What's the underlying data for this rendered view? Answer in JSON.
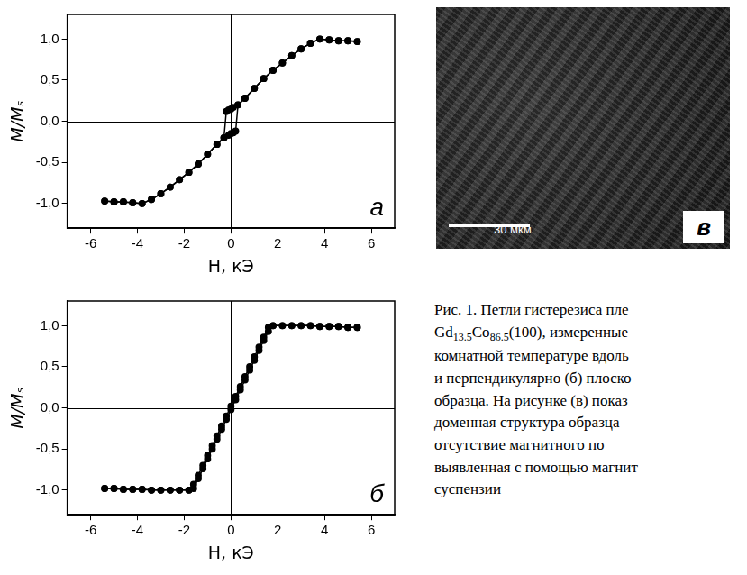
{
  "chart_data": [
    {
      "type": "scatter",
      "annotation": "а",
      "x_label": "H, кЭ",
      "y_label": "M/Mₛ",
      "xlim": [
        -7,
        7
      ],
      "ylim": [
        -1.3,
        1.3
      ],
      "xticks": [
        -6,
        -4,
        -2,
        0,
        2,
        4,
        6
      ],
      "yticks": [
        {
          "value": -1,
          "label": "-1,0"
        },
        {
          "value": -0.5,
          "label": "-0,5"
        },
        {
          "value": 0,
          "label": "0,0"
        },
        {
          "value": 0.5,
          "label": "0,5"
        },
        {
          "value": 1,
          "label": "1,0"
        }
      ],
      "grid": false,
      "marker": "circle",
      "line_style": "solid",
      "series": [
        {
          "color": "#000000",
          "x": [
            5.4,
            5.0,
            4.6,
            4.2,
            3.8,
            3.4,
            3.0,
            2.6,
            2.2,
            1.8,
            1.4,
            1.0,
            0.6,
            0.3,
            0.1,
            0.0,
            -0.1,
            -0.2,
            -0.3,
            -0.6,
            -1.0,
            -1.4,
            -1.8,
            -2.2,
            -2.6,
            -3.0,
            -3.4,
            -3.8,
            -4.2,
            -4.6,
            -5.0,
            -5.4
          ],
          "values": [
            0.97,
            0.98,
            0.98,
            0.99,
            1.0,
            0.95,
            0.88,
            0.8,
            0.71,
            0.62,
            0.52,
            0.4,
            0.28,
            0.2,
            0.17,
            0.15,
            0.14,
            0.12,
            -0.2,
            -0.28,
            -0.4,
            -0.52,
            -0.62,
            -0.71,
            -0.8,
            -0.88,
            -0.95,
            -1.0,
            -0.99,
            -0.98,
            -0.98,
            -0.97
          ]
        },
        {
          "color": "#000000",
          "x": [
            -5.4,
            -5.0,
            -4.6,
            -4.2,
            -3.8,
            -3.4,
            -3.0,
            -2.6,
            -2.2,
            -1.8,
            -1.4,
            -1.0,
            -0.6,
            -0.3,
            -0.1,
            0.0,
            0.1,
            0.2,
            0.3,
            0.6,
            1.0,
            1.4,
            1.8,
            2.2,
            2.6,
            3.0,
            3.4,
            3.8,
            4.2,
            4.6,
            5.0,
            5.4
          ],
          "values": [
            -0.97,
            -0.98,
            -0.98,
            -0.99,
            -1.0,
            -0.95,
            -0.88,
            -0.8,
            -0.71,
            -0.62,
            -0.52,
            -0.4,
            -0.28,
            -0.2,
            -0.17,
            -0.15,
            -0.14,
            -0.12,
            0.2,
            0.28,
            0.4,
            0.52,
            0.62,
            0.71,
            0.8,
            0.88,
            0.95,
            1.0,
            0.99,
            0.98,
            0.98,
            0.97
          ]
        }
      ]
    },
    {
      "type": "scatter",
      "annotation": "б",
      "x_label": "H, кЭ",
      "y_label": "M/Mₛ",
      "xlim": [
        -7,
        7
      ],
      "ylim": [
        -1.3,
        1.3
      ],
      "xticks": [
        -6,
        -4,
        -2,
        0,
        2,
        4,
        6
      ],
      "yticks": [
        {
          "value": -1,
          "label": "-1,0"
        },
        {
          "value": -0.5,
          "label": "-0,5"
        },
        {
          "value": 0,
          "label": "0,0"
        },
        {
          "value": 0.5,
          "label": "0,5"
        },
        {
          "value": 1,
          "label": "1,0"
        }
      ],
      "grid": false,
      "marker": "circle",
      "line_style": "solid",
      "series": [
        {
          "color": "#000000",
          "x": [
            5.4,
            5.0,
            4.6,
            4.2,
            3.8,
            3.4,
            3.0,
            2.6,
            2.2,
            1.8,
            1.6,
            1.4,
            1.2,
            1.0,
            0.8,
            0.6,
            0.4,
            0.2,
            0.0,
            -0.2,
            -0.4,
            -0.6,
            -0.8,
            -1.0,
            -1.2,
            -1.4,
            -1.6,
            -1.8,
            -2.2,
            -2.6,
            -3.0,
            -3.4,
            -3.8,
            -4.2,
            -4.6,
            -5.0,
            -5.4
          ],
          "values": [
            0.98,
            0.98,
            0.99,
            0.99,
            0.99,
            1.0,
            1.0,
            1.0,
            1.0,
            1.0,
            0.98,
            0.86,
            0.74,
            0.62,
            0.5,
            0.38,
            0.26,
            0.14,
            0.02,
            -0.1,
            -0.22,
            -0.34,
            -0.46,
            -0.58,
            -0.7,
            -0.82,
            -0.93,
            -1.0,
            -1.0,
            -1.0,
            -1.0,
            -1.0,
            -0.99,
            -0.99,
            -0.99,
            -0.98,
            -0.98
          ]
        },
        {
          "color": "#000000",
          "x": [
            -5.4,
            -5.0,
            -4.6,
            -4.2,
            -3.8,
            -3.4,
            -3.0,
            -2.6,
            -2.2,
            -1.8,
            -1.6,
            -1.4,
            -1.2,
            -1.0,
            -0.8,
            -0.6,
            -0.4,
            -0.2,
            0.0,
            0.2,
            0.4,
            0.6,
            0.8,
            1.0,
            1.2,
            1.4,
            1.6,
            1.8,
            2.2,
            2.6,
            3.0,
            3.4,
            3.8,
            4.2,
            4.6,
            5.0,
            5.4
          ],
          "values": [
            -0.98,
            -0.98,
            -0.99,
            -0.99,
            -0.99,
            -1.0,
            -1.0,
            -1.0,
            -1.0,
            -1.0,
            -0.98,
            -0.86,
            -0.74,
            -0.62,
            -0.5,
            -0.38,
            -0.26,
            -0.14,
            -0.02,
            0.1,
            0.22,
            0.34,
            0.46,
            0.58,
            0.7,
            0.82,
            0.93,
            1.0,
            1.0,
            1.0,
            1.0,
            1.0,
            0.99,
            0.99,
            0.99,
            0.98,
            0.98
          ]
        }
      ]
    }
  ],
  "image_panel": {
    "label": "в",
    "scale_bar": "30 мкм"
  },
  "caption": {
    "lines": [
      "Рис. 1. Петли гистерезиса пле",
      "Gd13.5Co86.5(100), измеренные",
      "комнатной температуре вдоль",
      "и перпендикулярно (б) плоско",
      "образца. На рисунке (в) показ",
      "доменная структура образца",
      "отсутствие магнитного по",
      "выявленная с помощью магнит",
      "суспензии"
    ]
  }
}
